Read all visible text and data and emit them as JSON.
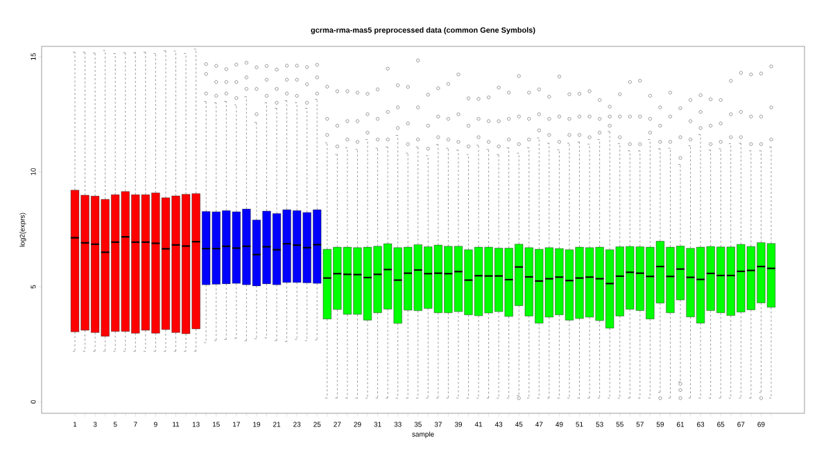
{
  "chart_data": {
    "type": "box",
    "title": "gcrma-rma-mas5 preprocessed data (common Gene Symbols)",
    "xlabel": "sample",
    "ylabel": "log2(exprs)",
    "categories": [
      "1",
      null,
      "3",
      null,
      "5",
      null,
      "7",
      null,
      "9",
      null,
      "11",
      null,
      "13",
      null,
      "15",
      null,
      "17",
      null,
      "19",
      null,
      "21",
      null,
      "23",
      null,
      "25",
      null,
      "27",
      null,
      "29",
      null,
      "31",
      null,
      "33",
      null,
      "35",
      null,
      "37",
      null,
      "39",
      null,
      "41",
      null,
      "43",
      null,
      "45",
      null,
      "47",
      null,
      "49",
      null,
      "51",
      null,
      "53",
      null,
      "55",
      null,
      "57",
      null,
      "59",
      null,
      "61",
      null,
      "63",
      null,
      "65",
      null,
      "67",
      null,
      "69",
      null
    ],
    "colors": [
      "#ff0000",
      "#ff0000",
      "#ff0000",
      "#ff0000",
      "#ff0000",
      "#ff0000",
      "#ff0000",
      "#ff0000",
      "#ff0000",
      "#ff0000",
      "#ff0000",
      "#ff0000",
      "#ff0000",
      "#0000ff",
      "#0000ff",
      "#0000ff",
      "#0000ff",
      "#0000ff",
      "#0000ff",
      "#0000ff",
      "#0000ff",
      "#0000ff",
      "#0000ff",
      "#0000ff",
      "#0000ff",
      "#00ff00",
      "#00ff00",
      "#00ff00",
      "#00ff00",
      "#00ff00",
      "#00ff00",
      "#00ff00",
      "#00ff00",
      "#00ff00",
      "#00ff00",
      "#00ff00",
      "#00ff00",
      "#00ff00",
      "#00ff00",
      "#00ff00",
      "#00ff00",
      "#00ff00",
      "#00ff00",
      "#00ff00",
      "#00ff00",
      "#00ff00",
      "#00ff00",
      "#00ff00",
      "#00ff00",
      "#00ff00",
      "#00ff00",
      "#00ff00",
      "#00ff00",
      "#00ff00",
      "#00ff00",
      "#00ff00",
      "#00ff00",
      "#00ff00",
      "#00ff00",
      "#00ff00",
      "#00ff00",
      "#00ff00",
      "#00ff00",
      "#00ff00",
      "#00ff00",
      "#00ff00",
      "#00ff00",
      "#00ff00",
      "#00ff00",
      "#00ff00"
    ],
    "ylim": [
      -0.5,
      15.45
    ],
    "yticks": [
      0,
      5,
      10,
      15
    ],
    "boxes": [
      {
        "low": 2.2,
        "q1": 3.04,
        "median": 7.13,
        "q3": 9.2,
        "high": 15.2
      },
      {
        "low": 2.2,
        "q1": 3.11,
        "median": 6.91,
        "q3": 8.98,
        "high": 15.2
      },
      {
        "low": 2.2,
        "q1": 3.01,
        "median": 6.85,
        "q3": 8.94,
        "high": 15.16
      },
      {
        "low": 2.2,
        "q1": 2.85,
        "median": 6.5,
        "q3": 8.8,
        "high": 15.27
      },
      {
        "low": 2.2,
        "q1": 3.06,
        "median": 6.94,
        "q3": 9.0,
        "high": 15.14
      },
      {
        "low": 2.2,
        "q1": 3.06,
        "median": 7.17,
        "q3": 9.14,
        "high": 15.18
      },
      {
        "low": 2.2,
        "q1": 2.98,
        "median": 6.94,
        "q3": 9.0,
        "high": 15.18
      },
      {
        "low": 2.2,
        "q1": 3.11,
        "median": 6.94,
        "q3": 9.0,
        "high": 15.2
      },
      {
        "low": 2.2,
        "q1": 2.98,
        "median": 6.89,
        "q3": 9.08,
        "high": 15.14
      },
      {
        "low": 2.2,
        "q1": 3.14,
        "median": 6.65,
        "q3": 8.87,
        "high": 15.26
      },
      {
        "low": 2.2,
        "q1": 3.01,
        "median": 6.82,
        "q3": 8.95,
        "high": 15.24
      },
      {
        "low": 2.2,
        "q1": 2.96,
        "median": 6.77,
        "q3": 9.02,
        "high": 15.14
      },
      {
        "low": 2.2,
        "q1": 3.17,
        "median": 6.96,
        "q3": 9.05,
        "high": 15.33
      },
      {
        "low": 2.57,
        "q1": 5.09,
        "median": 6.66,
        "q3": 8.27,
        "high": 13.06,
        "outliers": [
          14.68,
          14.25,
          13.4
        ]
      },
      {
        "low": 2.66,
        "q1": 5.11,
        "median": 6.66,
        "q3": 8.26,
        "high": 13.0,
        "outliers": [
          14.6,
          13.9,
          13.3
        ]
      },
      {
        "low": 2.71,
        "q1": 5.13,
        "median": 6.76,
        "q3": 8.31,
        "high": 13.06,
        "outliers": [
          14.46,
          13.9,
          13.4
        ]
      },
      {
        "low": 2.76,
        "q1": 5.15,
        "median": 6.68,
        "q3": 8.26,
        "high": 12.9,
        "outliers": [
          14.66,
          13.9,
          13.2
        ]
      },
      {
        "low": 2.65,
        "q1": 5.09,
        "median": 6.76,
        "q3": 8.38,
        "high": 13.26,
        "outliers": [
          14.74,
          14.1,
          13.6
        ]
      },
      {
        "low": 2.74,
        "q1": 5.04,
        "median": 6.4,
        "q3": 7.9,
        "high": 12.15,
        "outliers": [
          14.54,
          13.6,
          12.5
        ]
      },
      {
        "low": 2.78,
        "q1": 5.13,
        "median": 6.74,
        "q3": 8.29,
        "high": 13.0,
        "outliers": [
          14.6,
          14.0,
          13.3
        ]
      },
      {
        "low": 2.66,
        "q1": 5.09,
        "median": 6.61,
        "q3": 8.18,
        "high": 12.76,
        "outliers": [
          14.44,
          13.6,
          13.0
        ]
      },
      {
        "low": 2.62,
        "q1": 5.19,
        "median": 6.87,
        "q3": 8.35,
        "high": 13.09,
        "outliers": [
          14.61,
          14.0,
          13.4
        ]
      },
      {
        "low": 2.71,
        "q1": 5.19,
        "median": 6.81,
        "q3": 8.31,
        "high": 13.0,
        "outliers": [
          14.61,
          14.0,
          13.3
        ]
      },
      {
        "low": 2.66,
        "q1": 5.17,
        "median": 6.7,
        "q3": 8.23,
        "high": 12.76,
        "outliers": [
          14.55,
          13.8,
          13.0
        ]
      },
      {
        "low": 2.69,
        "q1": 5.15,
        "median": 6.83,
        "q3": 8.35,
        "high": 13.15,
        "outliers": [
          14.65,
          14.1,
          13.4
        ]
      },
      {
        "low": 0.16,
        "q1": 3.6,
        "median": 5.38,
        "q3": 6.63,
        "high": 11.26,
        "outliers": [
          13.7,
          12.3,
          11.6
        ]
      },
      {
        "low": 0.16,
        "q1": 4.01,
        "median": 5.57,
        "q3": 6.72,
        "high": 10.75,
        "outliers": [
          13.5,
          12.0,
          11.1
        ]
      },
      {
        "low": 0.16,
        "q1": 3.8,
        "median": 5.54,
        "q3": 6.72,
        "high": 11.04,
        "outliers": [
          13.5,
          12.2,
          11.4
        ]
      },
      {
        "low": 0.16,
        "q1": 3.8,
        "median": 5.53,
        "q3": 6.7,
        "high": 10.97,
        "outliers": [
          13.44,
          12.2,
          11.3
        ]
      },
      {
        "low": 0.16,
        "q1": 3.55,
        "median": 5.4,
        "q3": 6.72,
        "high": 11.4,
        "outliers": [
          13.39,
          12.5,
          11.7
        ]
      },
      {
        "low": 0.16,
        "q1": 3.87,
        "median": 5.54,
        "q3": 6.76,
        "high": 11.02,
        "outliers": [
          13.58,
          12.3,
          11.4
        ]
      },
      {
        "low": 0.16,
        "q1": 4.03,
        "median": 5.75,
        "q3": 6.87,
        "high": 11.08,
        "outliers": [
          14.48,
          12.6,
          11.4
        ]
      },
      {
        "low": 0.16,
        "q1": 3.41,
        "median": 5.29,
        "q3": 6.7,
        "high": 11.58,
        "outliers": [
          13.76,
          12.8,
          11.9
        ]
      },
      {
        "low": 0.16,
        "q1": 3.98,
        "median": 5.59,
        "q3": 6.72,
        "high": 10.81,
        "outliers": [
          13.69,
          12.1,
          11.2
        ]
      },
      {
        "low": 0.16,
        "q1": 3.96,
        "median": 5.73,
        "q3": 6.83,
        "high": 11.08,
        "outliers": [
          14.84,
          12.8,
          11.4
        ]
      },
      {
        "low": 0.16,
        "q1": 4.06,
        "median": 5.57,
        "q3": 6.74,
        "high": 10.7,
        "outliers": [
          13.35,
          12.0,
          11.0
        ]
      },
      {
        "low": 0.16,
        "q1": 3.87,
        "median": 5.59,
        "q3": 6.81,
        "high": 11.18,
        "outliers": [
          13.63,
          12.4,
          11.5
        ]
      },
      {
        "low": 0.16,
        "q1": 3.87,
        "median": 5.57,
        "q3": 6.76,
        "high": 11.02,
        "outliers": [
          13.82,
          12.3,
          11.4
        ]
      },
      {
        "low": 0.16,
        "q1": 3.92,
        "median": 5.66,
        "q3": 6.76,
        "high": 10.94,
        "outliers": [
          14.23,
          12.5,
          11.3
        ]
      },
      {
        "low": 0.16,
        "q1": 3.78,
        "median": 5.29,
        "q3": 6.61,
        "high": 10.75,
        "outliers": [
          13.19,
          12.0,
          11.1
        ]
      },
      {
        "low": 0.16,
        "q1": 3.74,
        "median": 5.48,
        "q3": 6.72,
        "high": 11.15,
        "outliers": [
          13.17,
          12.3,
          11.5
        ]
      },
      {
        "low": 0.16,
        "q1": 3.86,
        "median": 5.47,
        "q3": 6.72,
        "high": 10.97,
        "outliers": [
          13.23,
          12.2,
          11.3
        ]
      },
      {
        "low": 0.16,
        "q1": 3.92,
        "median": 5.47,
        "q3": 6.68,
        "high": 10.75,
        "outliers": [
          13.66,
          12.2,
          11.1
        ]
      },
      {
        "low": 0.16,
        "q1": 3.71,
        "median": 5.31,
        "q3": 6.68,
        "high": 11.04,
        "outliers": [
          13.44,
          12.3,
          11.4
        ]
      },
      {
        "low": 0.27,
        "q1": 4.18,
        "median": 5.86,
        "q3": 6.85,
        "high": 10.81,
        "outliers": [
          14.16,
          12.4,
          11.2,
          0.16
        ]
      },
      {
        "low": 0.16,
        "q1": 3.73,
        "median": 5.43,
        "q3": 6.7,
        "high": 11.04,
        "outliers": [
          13.44,
          12.3,
          11.4
        ]
      },
      {
        "low": 0.16,
        "q1": 3.42,
        "median": 5.25,
        "q3": 6.63,
        "high": 11.47,
        "outliers": [
          13.58,
          12.5,
          11.8
        ]
      },
      {
        "low": 0.16,
        "q1": 3.68,
        "median": 5.35,
        "q3": 6.7,
        "high": 11.24,
        "outliers": [
          13.26,
          12.3,
          11.6
        ]
      },
      {
        "low": 0.16,
        "q1": 3.78,
        "median": 5.42,
        "q3": 6.66,
        "high": 10.95,
        "outliers": [
          14.14,
          12.4,
          11.3
        ]
      },
      {
        "low": 0.16,
        "q1": 3.55,
        "median": 5.27,
        "q3": 6.61,
        "high": 11.24,
        "outliers": [
          13.37,
          12.3,
          11.6
        ]
      },
      {
        "low": 0.16,
        "q1": 3.62,
        "median": 5.38,
        "q3": 6.72,
        "high": 11.29,
        "outliers": [
          13.39,
          12.4,
          11.6
        ]
      },
      {
        "low": 0.16,
        "q1": 3.68,
        "median": 5.42,
        "q3": 6.7,
        "high": 11.2,
        "outliers": [
          13.5,
          12.4,
          11.5
        ]
      },
      {
        "low": 0.16,
        "q1": 3.53,
        "median": 5.35,
        "q3": 6.72,
        "high": 11.4,
        "outliers": [
          13.12,
          12.3,
          11.7
        ]
      },
      {
        "low": 0.16,
        "q1": 3.2,
        "median": 5.14,
        "q3": 6.61,
        "high": 11.75,
        "outliers": [
          12.83,
          12.4,
          12.0
        ]
      },
      {
        "low": 0.16,
        "q1": 3.73,
        "median": 5.46,
        "q3": 6.74,
        "high": 11.22,
        "outliers": [
          13.37,
          12.4,
          11.5
        ]
      },
      {
        "low": 0.16,
        "q1": 4.02,
        "median": 5.63,
        "q3": 6.75,
        "high": 10.91,
        "outliers": [
          13.9,
          12.4,
          11.2
        ]
      },
      {
        "low": 0.16,
        "q1": 3.97,
        "median": 5.59,
        "q3": 6.74,
        "high": 10.91,
        "outliers": [
          13.96,
          12.4,
          11.2
        ]
      },
      {
        "low": 0.16,
        "q1": 3.6,
        "median": 5.45,
        "q3": 6.72,
        "high": 11.4,
        "outliers": [
          13.3,
          12.3,
          11.7
        ]
      },
      {
        "low": 0.41,
        "q1": 4.29,
        "median": 5.88,
        "q3": 6.98,
        "high": 11.0,
        "outliers": [
          12.8,
          12.0,
          11.3,
          0.16
        ]
      },
      {
        "low": 0.16,
        "q1": 3.87,
        "median": 5.45,
        "q3": 6.72,
        "high": 11.02,
        "outliers": [
          13.44,
          12.4,
          11.3
        ]
      },
      {
        "low": 0.86,
        "q1": 4.43,
        "median": 5.77,
        "q3": 6.77,
        "high": 10.32,
        "outliers": [
          12.76,
          11.5,
          10.6,
          0.78,
          0.51,
          0.16
        ]
      },
      {
        "low": 0.16,
        "q1": 3.69,
        "median": 5.41,
        "q3": 6.67,
        "high": 11.13,
        "outliers": [
          13.12,
          12.2,
          11.4
        ]
      },
      {
        "low": 0.16,
        "q1": 3.42,
        "median": 5.32,
        "q3": 6.72,
        "high": 11.61,
        "outliers": [
          13.33,
          12.6,
          11.9
        ]
      },
      {
        "low": 0.16,
        "q1": 3.97,
        "median": 5.58,
        "q3": 6.75,
        "high": 10.94,
        "outliers": [
          13.15,
          12.0,
          11.2
        ]
      },
      {
        "low": 0.16,
        "q1": 3.87,
        "median": 5.49,
        "q3": 6.73,
        "high": 11.0,
        "outliers": [
          13.12,
          12.1,
          11.3
        ]
      },
      {
        "low": 0.16,
        "q1": 3.75,
        "median": 5.49,
        "q3": 6.73,
        "high": 11.22,
        "outliers": [
          13.95,
          12.5,
          11.5
        ]
      },
      {
        "low": 0.16,
        "q1": 3.9,
        "median": 5.67,
        "q3": 6.84,
        "high": 11.24,
        "outliers": [
          14.3,
          12.6,
          11.5
        ]
      },
      {
        "low": 0.16,
        "q1": 4.0,
        "median": 5.71,
        "q3": 6.75,
        "high": 10.91,
        "outliers": [
          14.23,
          12.4,
          11.2
        ]
      },
      {
        "low": 0.41,
        "q1": 4.3,
        "median": 5.88,
        "q3": 6.92,
        "high": 10.91,
        "outliers": [
          14.27,
          12.4,
          11.2,
          0.16
        ]
      },
      {
        "low": 0.16,
        "q1": 4.11,
        "median": 5.8,
        "q3": 6.88,
        "high": 11.08,
        "outliers": [
          14.58,
          12.8,
          11.4
        ]
      }
    ]
  }
}
